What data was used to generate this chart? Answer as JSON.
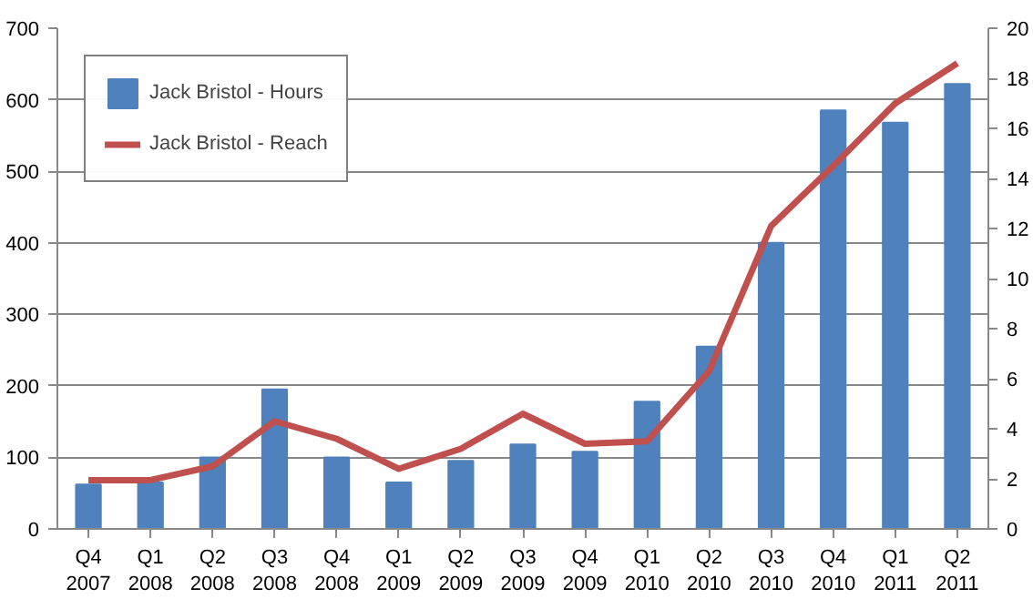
{
  "chart_data": {
    "type": "bar",
    "categories": [
      "Q4\n2007",
      "Q1\n2008",
      "Q2\n2008",
      "Q3\n2008",
      "Q4\n2008",
      "Q1\n2009",
      "Q2\n2009",
      "Q3\n2009",
      "Q4\n2009",
      "Q1\n2010",
      "Q2\n2010",
      "Q3\n2010",
      "Q4\n2010",
      "Q1\n2011",
      "Q2\n2011"
    ],
    "series": [
      {
        "name": "Jack Bristol - Hours",
        "color": "#4f81bd",
        "values": [
          62,
          65,
          100,
          195,
          100,
          65,
          95,
          118,
          108,
          178,
          255,
          400,
          585,
          568,
          622
        ]
      },
      {
        "name": "Jack Bristol - Reach",
        "type": "line",
        "axis": "y2",
        "color": "#c0504d",
        "values": [
          1.95,
          1.95,
          2.5,
          4.3,
          3.6,
          2.4,
          3.2,
          4.6,
          3.4,
          3.5,
          6.3,
          12.1,
          14.5,
          17,
          18.6
        ]
      }
    ],
    "ylim": [
      0,
      700
    ],
    "yticks": [
      0,
      100,
      200,
      300,
      400,
      500,
      600,
      700
    ],
    "y2lim": [
      0,
      20
    ],
    "y2ticks": [
      0,
      2,
      4,
      6,
      8,
      10,
      12,
      14,
      16,
      18,
      20
    ],
    "grid": "y",
    "legend": "top left",
    "marker": "none",
    "line_style": "solid"
  }
}
